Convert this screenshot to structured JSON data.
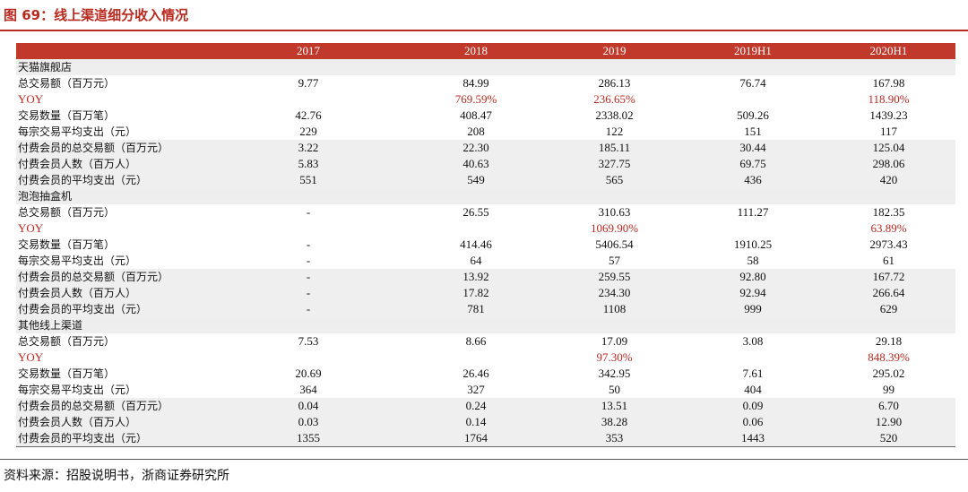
{
  "figure_title": "图 69：线上渠道细分收入情况",
  "columns": [
    "",
    "2017",
    "2018",
    "2019",
    "2019H1",
    "2020H1"
  ],
  "rows": [
    {
      "type": "section",
      "label": "天猫旗舰店",
      "values": [
        "",
        "",
        "",
        "",
        ""
      ]
    },
    {
      "type": "normal",
      "label": "总交易额（百万元）",
      "values": [
        "9.77",
        "84.99",
        "286.13",
        "76.74",
        "167.98"
      ]
    },
    {
      "type": "yoy",
      "label": "YOY",
      "values": [
        "",
        "769.59%",
        "236.65%",
        "",
        "118.90%"
      ]
    },
    {
      "type": "normal",
      "label": "交易数量（百万笔）",
      "values": [
        "42.76",
        "408.47",
        "2338.02",
        "509.26",
        "1439.23"
      ]
    },
    {
      "type": "normal",
      "label": "每宗交易平均支出（元）",
      "values": [
        "229",
        "208",
        "122",
        "151",
        "117"
      ]
    },
    {
      "type": "shaded",
      "label": "付费会员的总交易额（百万元）",
      "values": [
        "3.22",
        "22.30",
        "185.11",
        "30.44",
        "125.04"
      ]
    },
    {
      "type": "shaded",
      "label": "付费会员人数（百万人）",
      "values": [
        "5.83",
        "40.63",
        "327.75",
        "69.75",
        "298.06"
      ]
    },
    {
      "type": "shaded",
      "label": "付费会员的平均支出（元）",
      "values": [
        "551",
        "549",
        "565",
        "436",
        "420"
      ]
    },
    {
      "type": "section",
      "label": "泡泡抽盒机",
      "values": [
        "",
        "",
        "",
        "",
        ""
      ]
    },
    {
      "type": "normal",
      "label": "总交易额（百万元）",
      "values": [
        "-",
        "26.55",
        "310.63",
        "111.27",
        "182.35"
      ]
    },
    {
      "type": "yoy",
      "label": "YOY",
      "values": [
        "",
        "",
        "1069.90%",
        "",
        "63.89%"
      ]
    },
    {
      "type": "normal",
      "label": "交易数量（百万笔）",
      "values": [
        "-",
        "414.46",
        "5406.54",
        "1910.25",
        "2973.43"
      ]
    },
    {
      "type": "normal",
      "label": "每宗交易平均支出（元）",
      "values": [
        "-",
        "64",
        "57",
        "58",
        "61"
      ]
    },
    {
      "type": "shaded",
      "label": "付费会员的总交易额（百万元）",
      "values": [
        "-",
        "13.92",
        "259.55",
        "92.80",
        "167.72"
      ]
    },
    {
      "type": "shaded",
      "label": "付费会员人数（百万人）",
      "values": [
        "-",
        "17.82",
        "234.30",
        "92.94",
        "266.64"
      ]
    },
    {
      "type": "shaded",
      "label": "付费会员的平均支出（元）",
      "values": [
        "-",
        "781",
        "1108",
        "999",
        "629"
      ]
    },
    {
      "type": "section",
      "label": "其他线上渠道",
      "values": [
        "",
        "",
        "",
        "",
        ""
      ]
    },
    {
      "type": "normal",
      "label": "总交易额（百万元）",
      "values": [
        "7.53",
        "8.66",
        "17.09",
        "3.08",
        "29.18"
      ]
    },
    {
      "type": "yoy",
      "label": "YOY",
      "values": [
        "",
        "",
        "97.30%",
        "",
        "848.39%"
      ]
    },
    {
      "type": "normal",
      "label": "交易数量（百万笔）",
      "values": [
        "20.69",
        "26.46",
        "342.95",
        "7.61",
        "295.02"
      ]
    },
    {
      "type": "normal",
      "label": "每宗交易平均支出（元）",
      "values": [
        "364",
        "327",
        "50",
        "404",
        "99"
      ]
    },
    {
      "type": "shaded",
      "label": "付费会员的总交易额（百万元）",
      "values": [
        "0.04",
        "0.24",
        "13.51",
        "0.09",
        "6.70"
      ]
    },
    {
      "type": "shaded",
      "label": "付费会员人数（百万人）",
      "values": [
        "0.03",
        "0.14",
        "38.28",
        "0.06",
        "12.90"
      ]
    },
    {
      "type": "shaded",
      "label": "付费会员的平均支出（元）",
      "values": [
        "1355",
        "1764",
        "353",
        "1443",
        "520"
      ]
    }
  ],
  "source_note": "资料来源：招股说明书，浙商证券研究所",
  "colors": {
    "accent": "#b8291f",
    "header_bg": "#c0392b",
    "shade": "#efefef"
  }
}
